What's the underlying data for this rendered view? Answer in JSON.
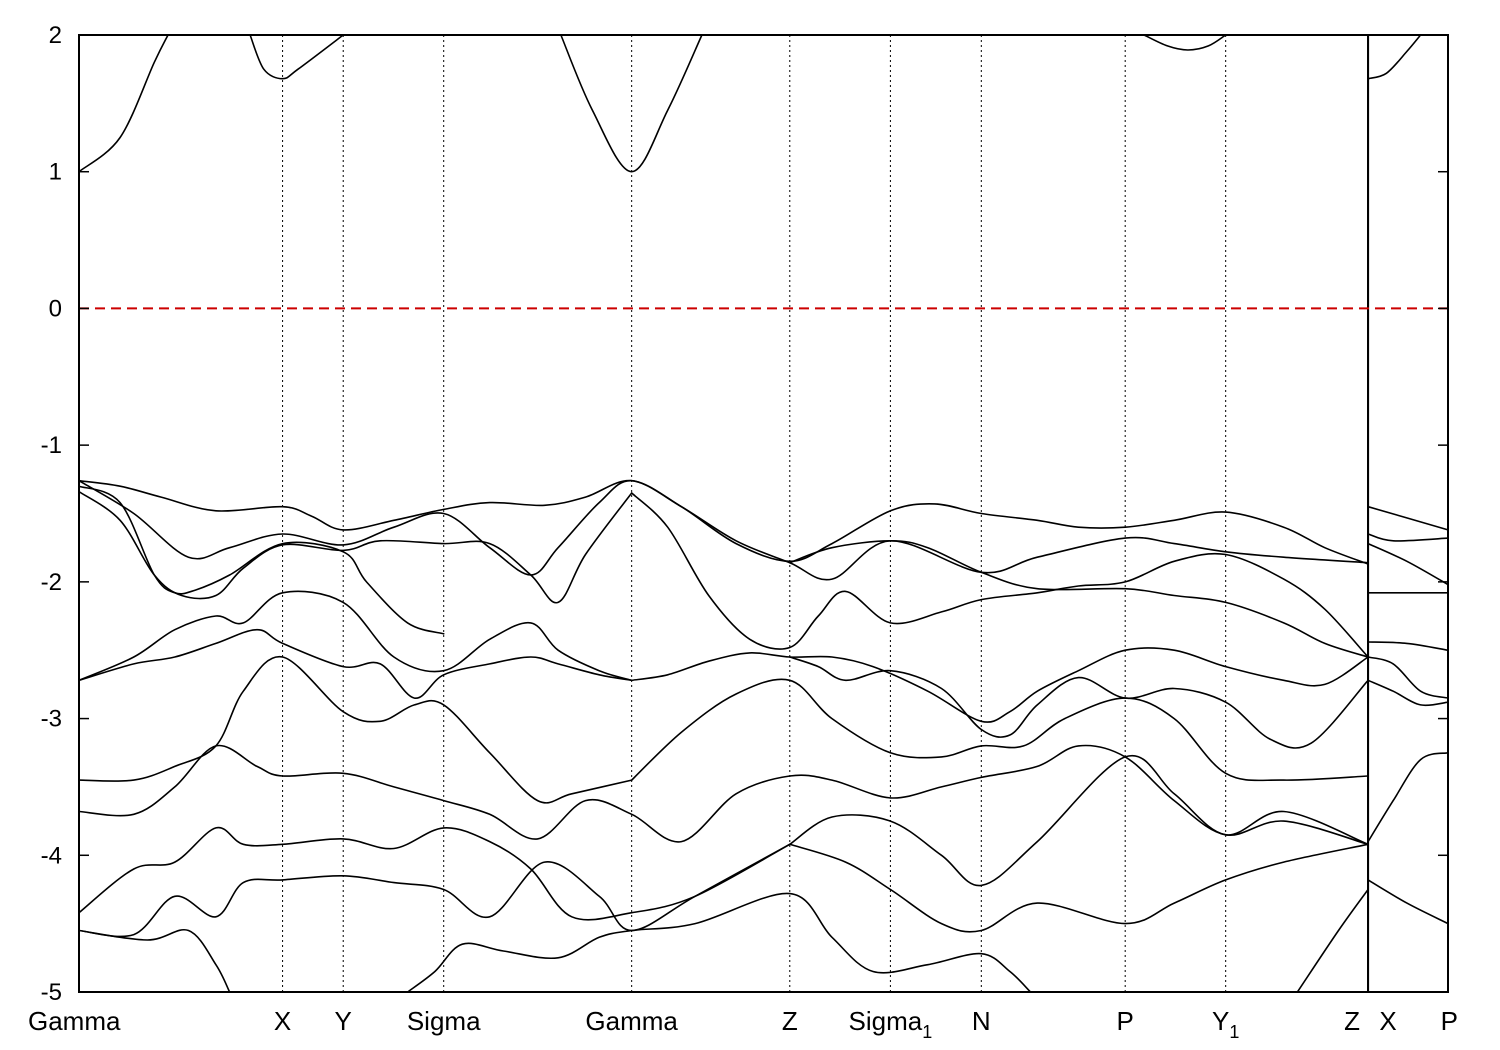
{
  "chart_data": {
    "type": "line",
    "title": "",
    "xlabel": "",
    "ylabel": "",
    "ylim": [
      -5,
      2
    ],
    "yticks": [
      2,
      1,
      0,
      -1,
      -2,
      -3,
      -4,
      -5
    ],
    "fermi_level": 0,
    "fermi_color": "#cc0000",
    "xlim": [
      0,
      10.0
    ],
    "high_symmetry_points": [
      {
        "label": "Gamma",
        "sub": "",
        "x": 0.0
      },
      {
        "label": "X",
        "sub": "",
        "x": 1.487
      },
      {
        "label": "Y",
        "sub": "",
        "x": 1.93
      },
      {
        "label": "Sigma",
        "sub": "",
        "x": 2.664
      },
      {
        "label": "Gamma",
        "sub": "",
        "x": 4.037
      },
      {
        "label": "Z",
        "sub": "",
        "x": 5.192
      },
      {
        "label": "Sigma",
        "sub": "1",
        "x": 5.927
      },
      {
        "label": "N",
        "sub": "",
        "x": 6.591
      },
      {
        "label": "P",
        "sub": "",
        "x": 7.642
      },
      {
        "label": "Y",
        "sub": "1",
        "x": 8.376
      },
      {
        "label": "Z",
        "sub": "",
        "x": 9.416
      },
      {
        "label": "X",
        "sub": "",
        "x": 9.416
      },
      {
        "label": "P",
        "sub": "",
        "x": 10.0
      }
    ],
    "path_break_x": 9.416,
    "series": [
      {
        "x": [
          0,
          0.3,
          0.55,
          0.65
        ],
        "y": [
          1.0,
          1.25,
          1.8,
          2.0
        ]
      },
      {
        "x": [
          1.25,
          1.35,
          1.487,
          1.6,
          1.93
        ],
        "y": [
          2.0,
          1.75,
          1.68,
          1.75,
          2.0
        ]
      },
      {
        "x": [
          3.52,
          3.75,
          4.037,
          4.3,
          4.55
        ],
        "y": [
          2.0,
          1.45,
          1.0,
          1.45,
          2.0
        ]
      },
      {
        "x": [
          7.78,
          7.95,
          8.1,
          8.25,
          8.376
        ],
        "y": [
          2.0,
          1.92,
          1.89,
          1.92,
          2.0
        ]
      },
      {
        "x": [
          9.416,
          9.55,
          9.7,
          9.8
        ],
        "y": [
          1.68,
          1.72,
          1.88,
          2.0
        ]
      },
      {
        "x": [
          0,
          0.3,
          0.6,
          1.0,
          1.487,
          1.7,
          1.93,
          2.3,
          2.664,
          3.0,
          3.4,
          3.7,
          4.037,
          4.4,
          4.8,
          5.192,
          5.5,
          5.927,
          6.25,
          6.591,
          7.0,
          7.3,
          7.642,
          8.0,
          8.376,
          8.8,
          9.1,
          9.416
        ],
        "y": [
          -1.26,
          -1.3,
          -1.38,
          -1.48,
          -1.45,
          -1.52,
          -1.62,
          -1.55,
          -1.47,
          -1.42,
          -1.44,
          -1.38,
          -1.26,
          -1.45,
          -1.72,
          -1.85,
          -1.72,
          -1.48,
          -1.43,
          -1.5,
          -1.55,
          -1.6,
          -1.6,
          -1.55,
          -1.49,
          -1.6,
          -1.75,
          -1.87
        ]
      },
      {
        "x": [
          0,
          0.4,
          0.8,
          1.1,
          1.487,
          1.93,
          2.3,
          2.664,
          3.0,
          3.3,
          3.5,
          3.8,
          4.037,
          4.4,
          4.8,
          5.192,
          5.5,
          5.927,
          6.591,
          7.0,
          7.642,
          8.0,
          8.376,
          8.8,
          9.416
        ],
        "y": [
          -1.26,
          -1.5,
          -1.82,
          -1.75,
          -1.65,
          -1.73,
          -1.6,
          -1.5,
          -1.75,
          -1.95,
          -1.75,
          -1.42,
          -1.26,
          -1.45,
          -1.7,
          -1.86,
          -1.98,
          -1.7,
          -1.93,
          -1.82,
          -1.68,
          -1.72,
          -1.78,
          -1.82,
          -1.86
        ]
      },
      {
        "x": [
          0,
          0.3,
          0.55,
          0.7,
          0.85,
          1.1,
          1.487,
          1.93,
          2.1,
          2.4,
          2.664
        ],
        "y": [
          -1.3,
          -1.42,
          -1.95,
          -2.08,
          -2.06,
          -1.95,
          -1.72,
          -1.78,
          -2.0,
          -2.3,
          -2.38
        ]
      },
      {
        "x": [
          0,
          0.3,
          0.55,
          0.75,
          1.0,
          1.2,
          1.487,
          1.93,
          2.2,
          2.664,
          3.0,
          3.3,
          3.5,
          3.7,
          4.037
        ],
        "y": [
          -1.34,
          -1.55,
          -1.95,
          -2.1,
          -2.1,
          -1.9,
          -1.73,
          -1.77,
          -1.7,
          -1.72,
          -1.72,
          -1.95,
          -2.15,
          -1.8,
          -1.35
        ]
      },
      {
        "x": [
          4.037,
          4.3,
          4.6,
          4.9,
          5.192,
          5.4,
          5.6,
          5.927,
          6.3,
          6.591,
          7.0,
          7.3,
          7.642,
          8.0,
          8.376,
          8.8,
          9.1,
          9.416
        ],
        "y": [
          -1.35,
          -1.6,
          -2.1,
          -2.42,
          -2.48,
          -2.25,
          -2.07,
          -2.3,
          -2.22,
          -2.13,
          -2.08,
          -2.03,
          -2.0,
          -1.85,
          -1.8,
          -1.98,
          -2.2,
          -2.55
        ]
      },
      {
        "x": [
          5.192,
          5.5,
          5.927,
          6.2,
          6.591,
          7.0,
          7.642,
          8.0,
          8.376,
          8.8,
          9.1,
          9.416
        ],
        "y": [
          -1.86,
          -1.75,
          -1.7,
          -1.75,
          -1.93,
          -2.05,
          -2.05,
          -2.1,
          -2.15,
          -2.3,
          -2.45,
          -2.55
        ]
      },
      {
        "x": [
          0,
          0.4,
          0.7,
          1.0,
          1.2,
          1.487,
          1.93,
          2.3,
          2.664,
          3.0,
          3.3,
          3.5,
          3.8,
          4.037
        ],
        "y": [
          -2.72,
          -2.55,
          -2.35,
          -2.25,
          -2.3,
          -2.08,
          -2.15,
          -2.55,
          -2.65,
          -2.42,
          -2.3,
          -2.5,
          -2.65,
          -2.72
        ]
      },
      {
        "x": [
          0,
          0.4,
          0.7,
          1.0,
          1.3,
          1.487,
          1.93,
          2.2,
          2.45,
          2.664,
          3.0,
          3.3,
          3.5,
          3.8,
          4.037
        ],
        "y": [
          -2.72,
          -2.6,
          -2.55,
          -2.45,
          -2.35,
          -2.45,
          -2.62,
          -2.6,
          -2.85,
          -2.68,
          -2.6,
          -2.55,
          -2.6,
          -2.68,
          -2.72
        ]
      },
      {
        "x": [
          0,
          0.4,
          0.7,
          1.0,
          1.2,
          1.487,
          1.93,
          2.2,
          2.45,
          2.664,
          3.0,
          3.35,
          3.6,
          4.037
        ],
        "y": [
          -3.45,
          -3.45,
          -3.35,
          -3.2,
          -2.8,
          -2.55,
          -2.95,
          -3.02,
          -2.9,
          -2.9,
          -3.25,
          -3.6,
          -3.55,
          -3.45
        ]
      },
      {
        "x": [
          4.037,
          4.3,
          4.6,
          4.9,
          5.192,
          5.5,
          5.8,
          6.2,
          6.591,
          6.8,
          7.0,
          7.3,
          7.642,
          8.0,
          8.376,
          8.8,
          9.1,
          9.416
        ],
        "y": [
          -2.72,
          -2.68,
          -2.58,
          -2.52,
          -2.55,
          -2.55,
          -2.62,
          -2.8,
          -3.02,
          -2.95,
          -2.8,
          -2.65,
          -2.5,
          -2.5,
          -2.62,
          -2.72,
          -2.75,
          -2.55
        ]
      },
      {
        "x": [
          5.192,
          5.4,
          5.6,
          5.927,
          6.3,
          6.591,
          6.8,
          7.0,
          7.3,
          7.642,
          8.0,
          8.376,
          8.7,
          9.0,
          9.416
        ],
        "y": [
          -2.55,
          -2.62,
          -2.72,
          -2.65,
          -2.78,
          -3.08,
          -3.12,
          -2.9,
          -2.7,
          -2.85,
          -2.78,
          -2.88,
          -3.15,
          -3.18,
          -2.72
        ]
      },
      {
        "x": [
          4.037,
          4.4,
          4.8,
          5.192,
          5.5,
          5.927,
          6.3,
          6.591,
          6.9,
          7.2,
          7.642,
          8.0,
          8.376,
          8.8,
          9.416
        ],
        "y": [
          -3.45,
          -3.1,
          -2.82,
          -2.72,
          -3.0,
          -3.25,
          -3.28,
          -3.2,
          -3.2,
          -3.0,
          -2.85,
          -3.0,
          -3.4,
          -3.45,
          -3.42
        ]
      },
      {
        "x": [
          0,
          0.4,
          0.7,
          1.0,
          1.3,
          1.487,
          1.93,
          2.3,
          2.664,
          3.0,
          3.35,
          3.7,
          4.037,
          4.4,
          4.8,
          5.192,
          5.5,
          5.927,
          6.3,
          6.591,
          7.0,
          7.3,
          7.642,
          8.0,
          8.376,
          8.8,
          9.416
        ],
        "y": [
          -3.68,
          -3.7,
          -3.5,
          -3.2,
          -3.35,
          -3.42,
          -3.4,
          -3.5,
          -3.6,
          -3.7,
          -3.88,
          -3.6,
          -3.7,
          -3.9,
          -3.55,
          -3.42,
          -3.45,
          -3.58,
          -3.5,
          -3.43,
          -3.35,
          -3.2,
          -3.28,
          -3.6,
          -3.85,
          -3.75,
          -3.92
        ]
      },
      {
        "x": [
          0,
          0.4,
          0.7,
          1.0,
          1.2,
          1.487,
          1.93,
          2.3,
          2.664,
          3.0,
          3.3,
          3.6,
          4.037,
          4.5,
          5.192
        ],
        "y": [
          -4.42,
          -4.1,
          -4.05,
          -3.8,
          -3.92,
          -3.92,
          -3.88,
          -3.95,
          -3.8,
          -3.9,
          -4.1,
          -4.45,
          -4.42,
          -4.3,
          -3.92
        ]
      },
      {
        "x": [
          5.192,
          5.5,
          5.927,
          6.3,
          6.591,
          7.0,
          7.642,
          8.0,
          8.376,
          8.8,
          9.416
        ],
        "y": [
          -3.92,
          -3.72,
          -3.75,
          -4.0,
          -4.22,
          -3.9,
          -3.28,
          -3.55,
          -3.85,
          -3.68,
          -3.92
        ]
      },
      {
        "x": [
          0,
          0.4,
          0.7,
          1.0,
          1.2,
          1.487,
          1.93,
          2.3,
          2.664,
          3.0,
          3.4,
          3.8,
          4.037,
          4.5,
          5.192
        ],
        "y": [
          -4.55,
          -4.58,
          -4.3,
          -4.45,
          -4.2,
          -4.18,
          -4.15,
          -4.2,
          -4.25,
          -4.45,
          -4.05,
          -4.3,
          -4.55,
          -4.3,
          -3.92
        ]
      },
      {
        "x": [
          5.192,
          5.6,
          5.927,
          6.3,
          6.591,
          7.0,
          7.642,
          8.0,
          8.376,
          8.8,
          9.416
        ],
        "y": [
          -3.92,
          -4.05,
          -4.25,
          -4.5,
          -4.55,
          -4.35,
          -4.5,
          -4.35,
          -4.18,
          -4.05,
          -3.92
        ]
      },
      {
        "x": [
          0,
          0.5,
          0.8,
          1.0,
          1.1
        ],
        "y": [
          -4.55,
          -4.62,
          -4.55,
          -4.8,
          -5.0
        ]
      },
      {
        "x": [
          2.4,
          2.6,
          2.8,
          3.1,
          3.5,
          3.8,
          4.037,
          4.5,
          5.192,
          5.5,
          5.8,
          6.2,
          6.591,
          6.8,
          6.95
        ],
        "y": [
          -5.0,
          -4.85,
          -4.65,
          -4.7,
          -4.75,
          -4.6,
          -4.55,
          -4.5,
          -4.28,
          -4.6,
          -4.85,
          -4.8,
          -4.72,
          -4.85,
          -5.0
        ]
      },
      {
        "x": [
          8.9,
          9.2,
          9.416
        ],
        "y": [
          -5.0,
          -4.55,
          -4.25
        ]
      },
      {
        "x": [
          9.416,
          10.0
        ],
        "y": [
          -1.45,
          -1.62
        ]
      },
      {
        "x": [
          9.416,
          9.6,
          10.0
        ],
        "y": [
          -1.65,
          -1.7,
          -1.68
        ]
      },
      {
        "x": [
          9.416,
          9.7,
          10.0
        ],
        "y": [
          -1.72,
          -1.85,
          -2.02
        ]
      },
      {
        "x": [
          9.416,
          10.0
        ],
        "y": [
          -2.08,
          -2.08
        ]
      },
      {
        "x": [
          9.416,
          9.7,
          10.0
        ],
        "y": [
          -2.44,
          -2.45,
          -2.5
        ]
      },
      {
        "x": [
          9.416,
          9.6,
          9.8,
          10.0
        ],
        "y": [
          -2.55,
          -2.6,
          -2.8,
          -2.85
        ]
      },
      {
        "x": [
          9.416,
          9.6,
          9.8,
          10.0
        ],
        "y": [
          -2.72,
          -2.8,
          -2.9,
          -2.88
        ]
      },
      {
        "x": [
          9.416,
          9.6,
          9.8,
          10.0
        ],
        "y": [
          -3.9,
          -3.6,
          -3.3,
          -3.25
        ]
      },
      {
        "x": [
          9.416,
          9.7,
          10.0
        ],
        "y": [
          -4.18,
          -4.35,
          -4.5
        ]
      }
    ]
  }
}
